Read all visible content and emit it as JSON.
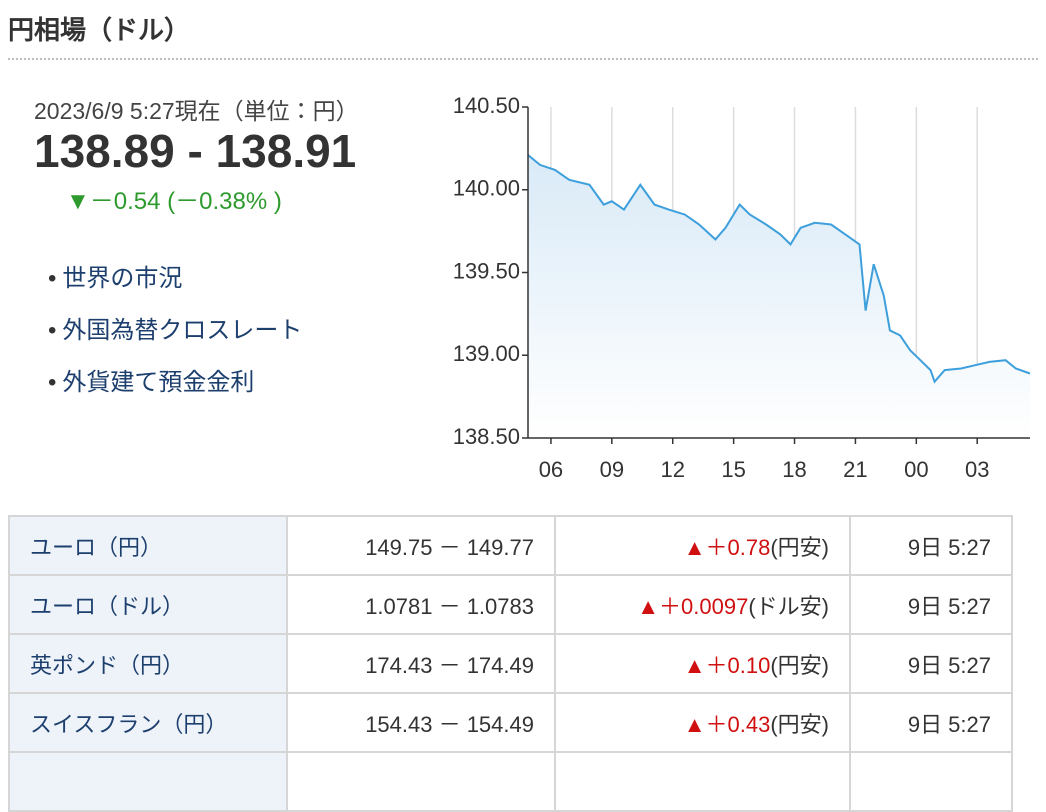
{
  "header": {
    "title": "円相場（ドル）"
  },
  "quote": {
    "timestamp": "2023/6/9 5:27現在（単位：円）",
    "price": "138.89 - 138.91",
    "arrow": "▼",
    "change": "－0.54 (－0.38% )"
  },
  "links": [
    "世界の市況",
    "外国為替クロスレート",
    "外貨建て預金金利"
  ],
  "chart_data": {
    "type": "line",
    "x": [
      4.87,
      5.46,
      6.2,
      6.9,
      7.9,
      8.6,
      9.0,
      9.6,
      10.4,
      11.1,
      11.8,
      12.6,
      13.3,
      14.1,
      14.6,
      15.3,
      15.8,
      16.6,
      17.3,
      17.8,
      18.3,
      19.0,
      19.8,
      20.5,
      21.2,
      21.5,
      21.9,
      22.4,
      22.7,
      23.2,
      23.7,
      24.2,
      24.7,
      24.9,
      25.4,
      26.2,
      26.9,
      27.6,
      28.4,
      28.9,
      29.6
    ],
    "series": [
      {
        "color": "#3d9fdc",
        "values": [
          140.21,
          140.15,
          140.12,
          140.06,
          140.03,
          139.91,
          139.93,
          139.88,
          140.03,
          139.91,
          139.88,
          139.85,
          139.79,
          139.7,
          139.77,
          139.91,
          139.85,
          139.79,
          139.73,
          139.67,
          139.77,
          139.8,
          139.79,
          139.73,
          139.67,
          139.27,
          139.55,
          139.36,
          139.15,
          139.12,
          139.03,
          138.97,
          138.91,
          138.84,
          138.91,
          138.92,
          138.94,
          138.96,
          138.97,
          138.92,
          138.89
        ]
      }
    ],
    "xlim": [
      4.87,
      29.6
    ],
    "ylim": [
      138.5,
      140.5
    ],
    "xticks": [
      {
        "value": 6,
        "label": "06"
      },
      {
        "value": 9,
        "label": "09"
      },
      12,
      15,
      18,
      21,
      {
        "value": 24,
        "label": "00"
      },
      {
        "value": 27,
        "label": "03"
      }
    ],
    "yticks": [
      {
        "value": 138.5,
        "label": "138.50"
      },
      {
        "value": 139,
        "label": "139.00"
      },
      {
        "value": 139.5,
        "label": "139.50"
      },
      {
        "value": 140,
        "label": "140.00"
      },
      {
        "value": 140.5,
        "label": "140.50"
      }
    ],
    "grid": true
  },
  "table": {
    "rows": [
      [
        "ユーロ（円）",
        "149.75 － 149.77",
        "▲",
        "＋0.78",
        "(円安)",
        "9日 5:27"
      ],
      [
        "ユーロ（ドル）",
        "1.0781 － 1.0783",
        "▲",
        "＋0.0097",
        "(ドル安)",
        "9日 5:27"
      ],
      [
        "英ポンド（円）",
        "174.43 － 174.49",
        "▲",
        "＋0.10",
        "(円安)",
        "9日 5:27"
      ],
      [
        "スイスフラン（円）",
        "154.43 － 154.49",
        "▲",
        "＋0.43",
        "(円安)",
        "9日 5:27"
      ]
    ]
  }
}
